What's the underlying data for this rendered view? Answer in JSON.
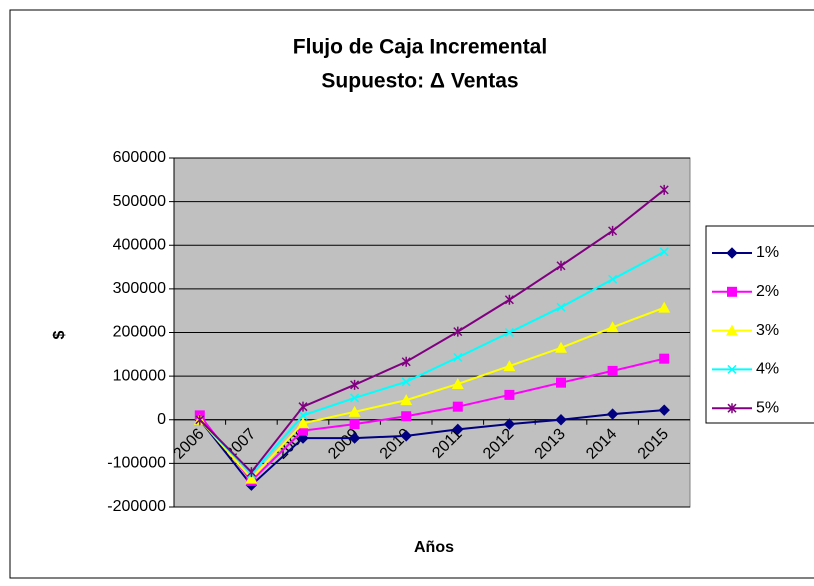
{
  "chart_data": {
    "type": "line",
    "title": "Flujo de Caja Incremental",
    "subtitle": "Supuesto: Δ Ventas",
    "x_label": "Años",
    "y_label": "$",
    "categories": [
      "2006",
      "2007",
      "2008",
      "2009",
      "2010",
      "2011",
      "2012",
      "2013",
      "2014",
      "2015"
    ],
    "series": [
      {
        "name": "1%",
        "color": "#000080",
        "marker": "diamond",
        "values": [
          0,
          -150000,
          -42000,
          -42000,
          -37000,
          -22000,
          -10000,
          0,
          13000,
          22000
        ]
      },
      {
        "name": "2%",
        "color": "#ff00ff",
        "marker": "square",
        "values": [
          10000,
          -140000,
          -25000,
          -10000,
          8000,
          30000,
          57000,
          85000,
          112000,
          140000
        ]
      },
      {
        "name": "3%",
        "color": "#ffff00",
        "marker": "triangle",
        "values": [
          0,
          -135000,
          -8000,
          18000,
          45000,
          82000,
          123000,
          165000,
          212000,
          257000
        ]
      },
      {
        "name": "4%",
        "color": "#00ffff",
        "marker": "x",
        "values": [
          0,
          -125000,
          10000,
          50000,
          87000,
          143000,
          200000,
          258000,
          322000,
          385000
        ]
      },
      {
        "name": "5%",
        "color": "#800080",
        "marker": "star",
        "values": [
          0,
          -120000,
          30000,
          80000,
          133000,
          202000,
          275000,
          353000,
          433000,
          527000
        ]
      }
    ],
    "ylim": [
      -200000,
      600000
    ],
    "yticks": [
      -200000,
      -100000,
      0,
      100000,
      200000,
      300000,
      400000,
      500000,
      600000
    ],
    "grid": true,
    "legend": "right"
  }
}
